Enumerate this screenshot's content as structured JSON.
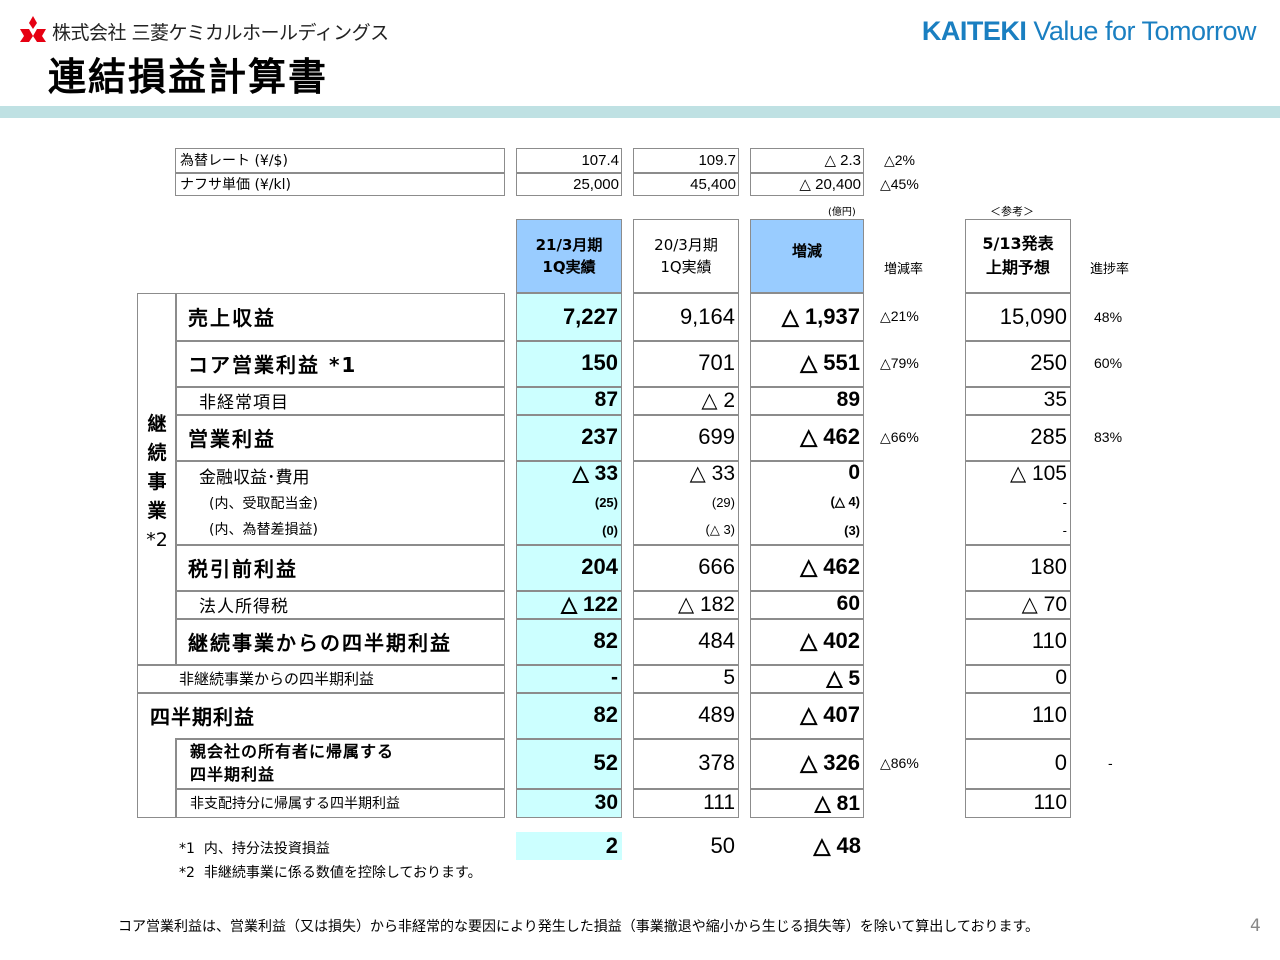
{
  "header": {
    "company": "株式会社 三菱ケミカルホールディングス",
    "title": "連結損益計算書",
    "slogan_bold": "KAITEKI",
    "slogan_rest": " Value for Tomorrow",
    "logo_color": "#e60012",
    "slogan_color": "#1a7fc1",
    "band_color": "#bfe1e3"
  },
  "market": {
    "rows": [
      {
        "label": "為替レート (¥/$)",
        "cur": "107.4",
        "prev": "109.7",
        "diff": "△ 2.3",
        "rate": "△2%"
      },
      {
        "label": "ナフサ単価  (¥/kl)",
        "cur": "25,000",
        "prev": "45,400",
        "diff": "△ 20,400",
        "rate": "△45%"
      }
    ]
  },
  "table": {
    "unit": "(億円)",
    "reference_label": "＜参考＞",
    "columns": {
      "cur_line1": "21/3月期",
      "cur_line2": "1Q実績",
      "prev_line1": "20/3月期",
      "prev_line2": "1Q実績",
      "diff": "増減",
      "rate": "増減率",
      "forecast_line1": "5/13発表",
      "forecast_line2": "上期予想",
      "progress": "進捗率"
    },
    "side_label": "継続事業*2",
    "side_chars": [
      "継",
      "続",
      "事",
      "業",
      "*2"
    ],
    "rows": [
      {
        "label": "売上収益",
        "cur": "7,227",
        "prev": "9,164",
        "diff": "△ 1,937",
        "rate": "△21%",
        "forecast": "15,090",
        "progress": "48%"
      },
      {
        "label": "コア営業利益  *1",
        "cur": "150",
        "prev": "701",
        "diff": "△ 551",
        "rate": "△79%",
        "forecast": "250",
        "progress": "60%"
      },
      {
        "label": "非経常項目",
        "cur": "87",
        "prev": "△ 2",
        "diff": "89",
        "rate": "",
        "forecast": "35",
        "progress": ""
      },
      {
        "label": "営業利益",
        "cur": "237",
        "prev": "699",
        "diff": "△ 462",
        "rate": "△66%",
        "forecast": "285",
        "progress": "83%"
      },
      {
        "label": "金融収益･費用",
        "cur": "△ 33",
        "prev": "△ 33",
        "diff": "0",
        "rate": "",
        "forecast": "△ 105",
        "progress": ""
      },
      {
        "label": "(内、受取配当金)",
        "cur": "(25)",
        "prev": "(29)",
        "diff": "(△ 4)",
        "rate": "",
        "forecast": "-",
        "progress": ""
      },
      {
        "label": "(内、為替差損益)",
        "cur": "(0)",
        "prev": "(△ 3)",
        "diff": "(3)",
        "rate": "",
        "forecast": "-",
        "progress": ""
      },
      {
        "label": "税引前利益",
        "cur": "204",
        "prev": "666",
        "diff": "△ 462",
        "rate": "",
        "forecast": "180",
        "progress": ""
      },
      {
        "label": "法人所得税",
        "cur": "△ 122",
        "prev": "△ 182",
        "diff": "60",
        "rate": "",
        "forecast": "△ 70",
        "progress": ""
      },
      {
        "label": "継続事業からの四半期利益",
        "cur": "82",
        "prev": "484",
        "diff": "△ 402",
        "rate": "",
        "forecast": "110",
        "progress": ""
      },
      {
        "label": "非継続事業からの四半期利益",
        "cur": "-",
        "prev": "5",
        "diff": "△ 5",
        "rate": "",
        "forecast": "0",
        "progress": ""
      },
      {
        "label": "四半期利益",
        "cur": "82",
        "prev": "489",
        "diff": "△ 407",
        "rate": "",
        "forecast": "110",
        "progress": ""
      },
      {
        "label_line1": "親会社の所有者に帰属する",
        "label_line2": "四半期利益",
        "cur": "52",
        "prev": "378",
        "diff": "△ 326",
        "rate": "△86%",
        "forecast": "0",
        "progress": "-"
      },
      {
        "label": "非支配持分に帰属する四半期利益",
        "cur": "30",
        "prev": "111",
        "diff": "△ 81",
        "rate": "",
        "forecast": "110",
        "progress": ""
      }
    ]
  },
  "notes": {
    "note1_mark": "*1",
    "note1_text": "内、持分法投資損益",
    "note1_cur": "2",
    "note1_prev": "50",
    "note1_diff": "△ 48",
    "note2_mark": "*2",
    "note2_text": "非継続事業に係る数値を控除しております。"
  },
  "footer": {
    "text": "コア営業利益は、営業利益（又は損失）から非経常的な要因により発生した損益（事業撤退や縮小から生じる損失等）を除いて算出しております。",
    "page": "4"
  }
}
